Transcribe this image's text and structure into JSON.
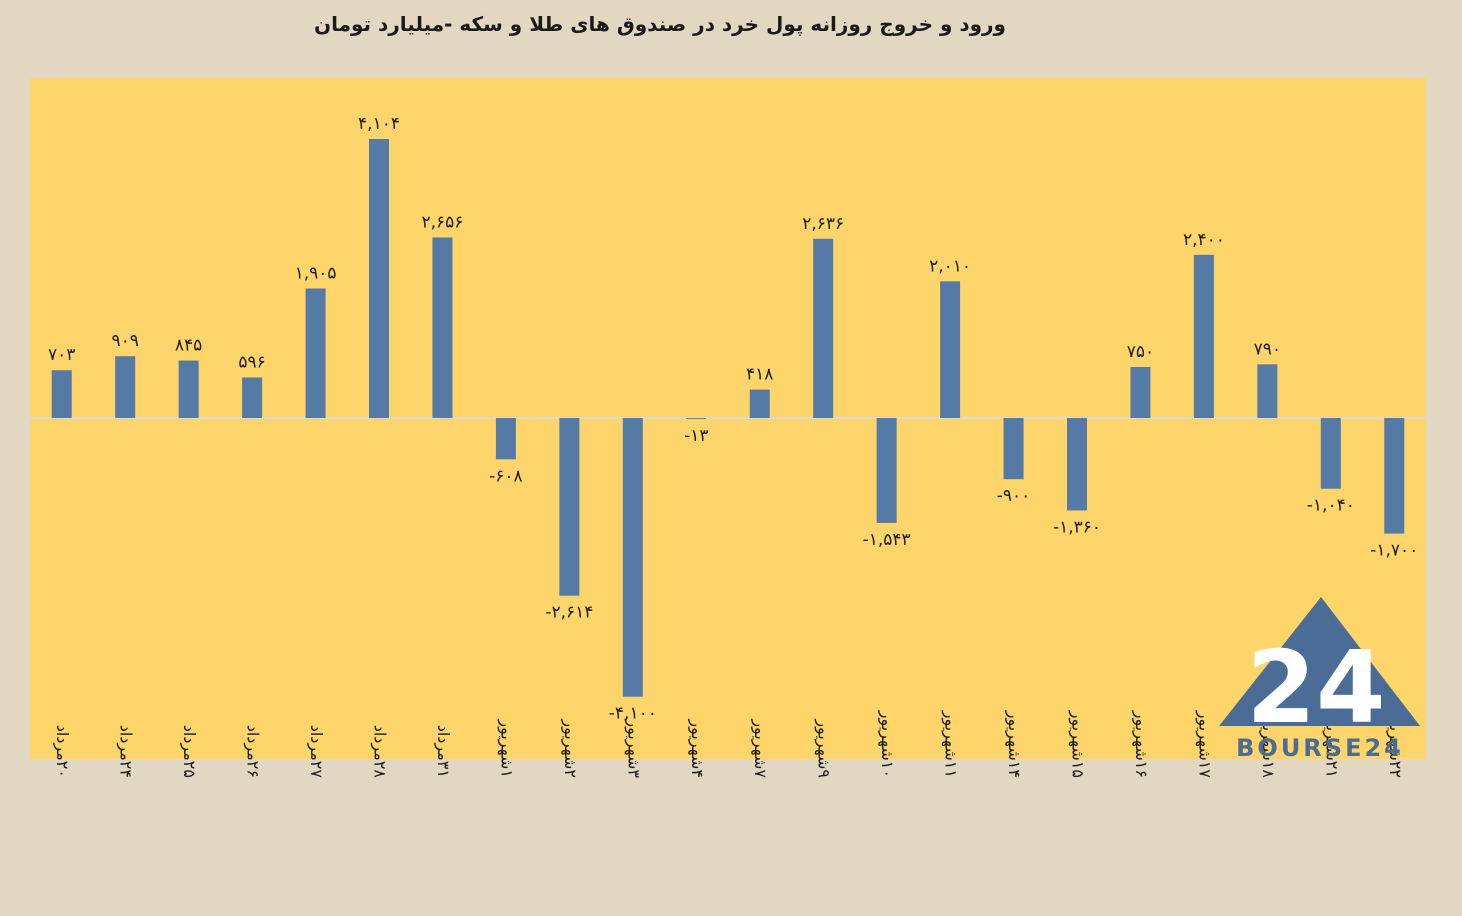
{
  "chart_data": {
    "type": "bar",
    "title": "ورود و خروج روزانه پول خرد در صندوق های طلا و سکه -میلیارد تومان",
    "categories": [
      "۲۰مرداد",
      "۲۴مرداد",
      "۲۵مرداد",
      "۲۶مرداد",
      "۲۷مرداد",
      "۲۸مرداد",
      "۳۱مرداد",
      "۱شهریور",
      "۲شهریور",
      "۳شهریور",
      "۴شهریور",
      "۷شهریور",
      "۹شهریور",
      "۱۰شهریور",
      "۱۱شهریور",
      "۱۴شهریور",
      "۱۵شهریور",
      "۱۶شهریور",
      "۱۷شهریور",
      "۱۸شهریور",
      "۲۱شهریور",
      "۲۲شهریور"
    ],
    "values": [
      703,
      909,
      845,
      596,
      1905,
      4104,
      2656,
      -608,
      -2614,
      -4100,
      -13,
      418,
      2636,
      -1543,
      2010,
      -900,
      -1360,
      750,
      2400,
      790,
      -1040,
      -1700
    ],
    "value_labels": [
      "۷۰۳",
      "۹۰۹",
      "۸۴۵",
      "۵۹۶",
      "۱,۹۰۵",
      "۴,۱۰۴",
      "۲,۶۵۶",
      "-۶۰۸",
      "-۲,۶۱۴",
      "-۴,۱۰۰",
      "-۱۳",
      "۴۱۸",
      "۲,۶۳۶",
      "-۱,۵۴۳",
      "۲,۰۱۰",
      "-۹۰۰",
      "-۱,۳۶۰",
      "۷۵۰",
      "۲,۴۰۰",
      "۷۹۰",
      "-۱,۰۴۰",
      "-۱,۷۰۰"
    ],
    "ylim": [
      -5000,
      5000
    ],
    "grid": false,
    "colors": {
      "bar": "#547aa5",
      "plot_bg": "#fdd56b",
      "page_bg": "#e2d8c1",
      "axis": "#d9d9d9"
    }
  },
  "logo": {
    "text": "BOURSE24",
    "mark": "24",
    "color": "#4a6c96"
  }
}
